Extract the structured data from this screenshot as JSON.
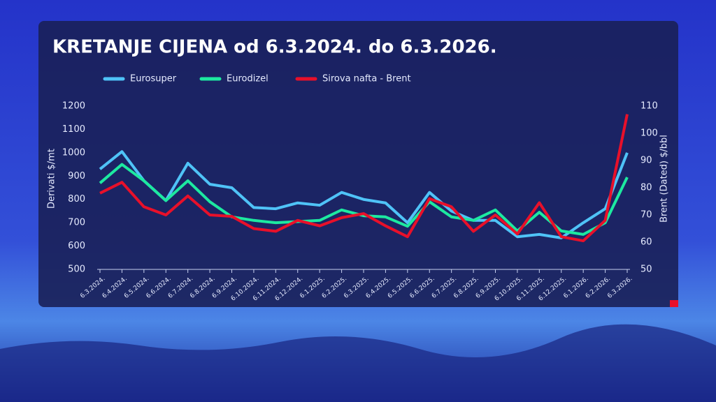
{
  "chart_data": {
    "type": "line",
    "title": "KRETANJE CIJENA od 6.3.2024. do 6.3.2026.",
    "ylabel": "Derivati $/mt",
    "y2label": "Brent (Dated) $/bbl",
    "categories": [
      "6.3.2024.",
      "6.4.2024.",
      "6.5.2024.",
      "6.6.2024.",
      "6.7.2024.",
      "6.8.2024.",
      "6.9.2024.",
      "6.10.2024.",
      "6.11.2024.",
      "6.12.2024.",
      "6.1.2025.",
      "6.2.2025.",
      "6.3.2025.",
      "6.4.2025.",
      "6.5.2025.",
      "6.6.2025.",
      "6.7.2025.",
      "6.8.2025.",
      "6.9.2025.",
      "6.10.2025.",
      "6.11.2025.",
      "6.12.2025.",
      "6.1.2026.",
      "6.2.2026.",
      "6.3.2026."
    ],
    "series": [
      {
        "name": "Eurosuper",
        "color": "#4fc3f7",
        "values": [
          930,
          1005,
          880,
          795,
          955,
          865,
          850,
          765,
          760,
          785,
          775,
          830,
          800,
          785,
          700,
          830,
          750,
          710,
          710,
          640,
          650,
          635,
          700,
          760,
          1000
        ]
      },
      {
        "name": "Eurodizel",
        "color": "#1de9a0",
        "values": [
          870,
          950,
          880,
          795,
          880,
          790,
          725,
          710,
          700,
          705,
          710,
          755,
          730,
          725,
          685,
          790,
          725,
          710,
          755,
          665,
          745,
          665,
          650,
          700,
          895
        ]
      },
      {
        "name": "Sirova nafta - Brent",
        "color": "#e8102a",
        "axis": "y2",
        "values": [
          78,
          82,
          73,
          70,
          77,
          70,
          69.5,
          65,
          64,
          68,
          66,
          69,
          70.5,
          66,
          62,
          76,
          73,
          64,
          70,
          63,
          74.5,
          62,
          60.5,
          68,
          107
        ]
      }
    ],
    "ylim": [
      500,
      1200
    ],
    "yticks": [
      500,
      600,
      700,
      800,
      900,
      1000,
      1100,
      1200
    ],
    "y2lim": [
      50,
      110
    ],
    "y2ticks": [
      50,
      60,
      70,
      80,
      90,
      100,
      110
    ],
    "grid": false
  }
}
